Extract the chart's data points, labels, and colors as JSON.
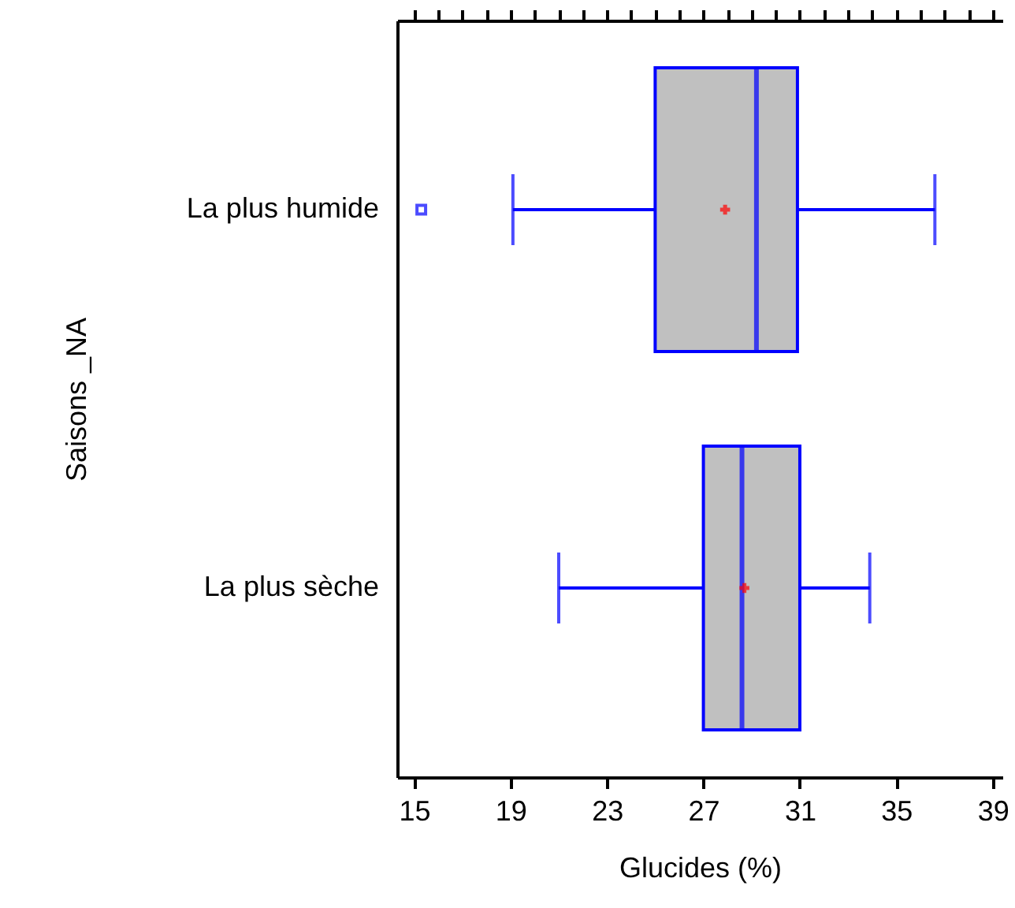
{
  "chart_data": {
    "type": "box",
    "orientation": "horizontal",
    "xlabel": "Glucides (%)",
    "ylabel": "Saisons _NA",
    "categories": [
      "La plus humide",
      "La plus sèche"
    ],
    "series": [
      {
        "color": "#0000ff",
        "boxes": [
          {
            "low": 19.1,
            "q1": 25.0,
            "median": 29.2,
            "q3": 30.9,
            "high": 36.6,
            "mean": 27.9,
            "outliers": [
              15.3
            ]
          },
          {
            "low": 21.0,
            "q1": 27.0,
            "median": 28.6,
            "q3": 31.0,
            "high": 33.9,
            "mean": 28.7
          }
        ]
      }
    ],
    "xlim": [
      14.3,
      39.4
    ],
    "xticks": [
      15,
      {
        "value": 16,
        "label": null
      },
      {
        "value": 17,
        "label": null
      },
      {
        "value": 18,
        "label": null
      },
      19,
      {
        "value": 20,
        "label": null
      },
      {
        "value": 21,
        "label": null
      },
      {
        "value": 22,
        "label": null
      },
      23,
      {
        "value": 24,
        "label": null
      },
      {
        "value": 25,
        "label": null
      },
      {
        "value": 26,
        "label": null
      },
      27,
      {
        "value": 28,
        "label": null
      },
      {
        "value": 29,
        "label": null
      },
      {
        "value": 30,
        "label": null
      },
      31,
      {
        "value": 32,
        "label": null
      },
      {
        "value": 33,
        "label": null
      },
      {
        "value": 34,
        "label": null
      },
      35,
      {
        "value": 36,
        "label": null
      },
      {
        "value": 37,
        "label": null
      },
      {
        "value": 38,
        "label": null
      },
      39
    ],
    "grid": false
  }
}
